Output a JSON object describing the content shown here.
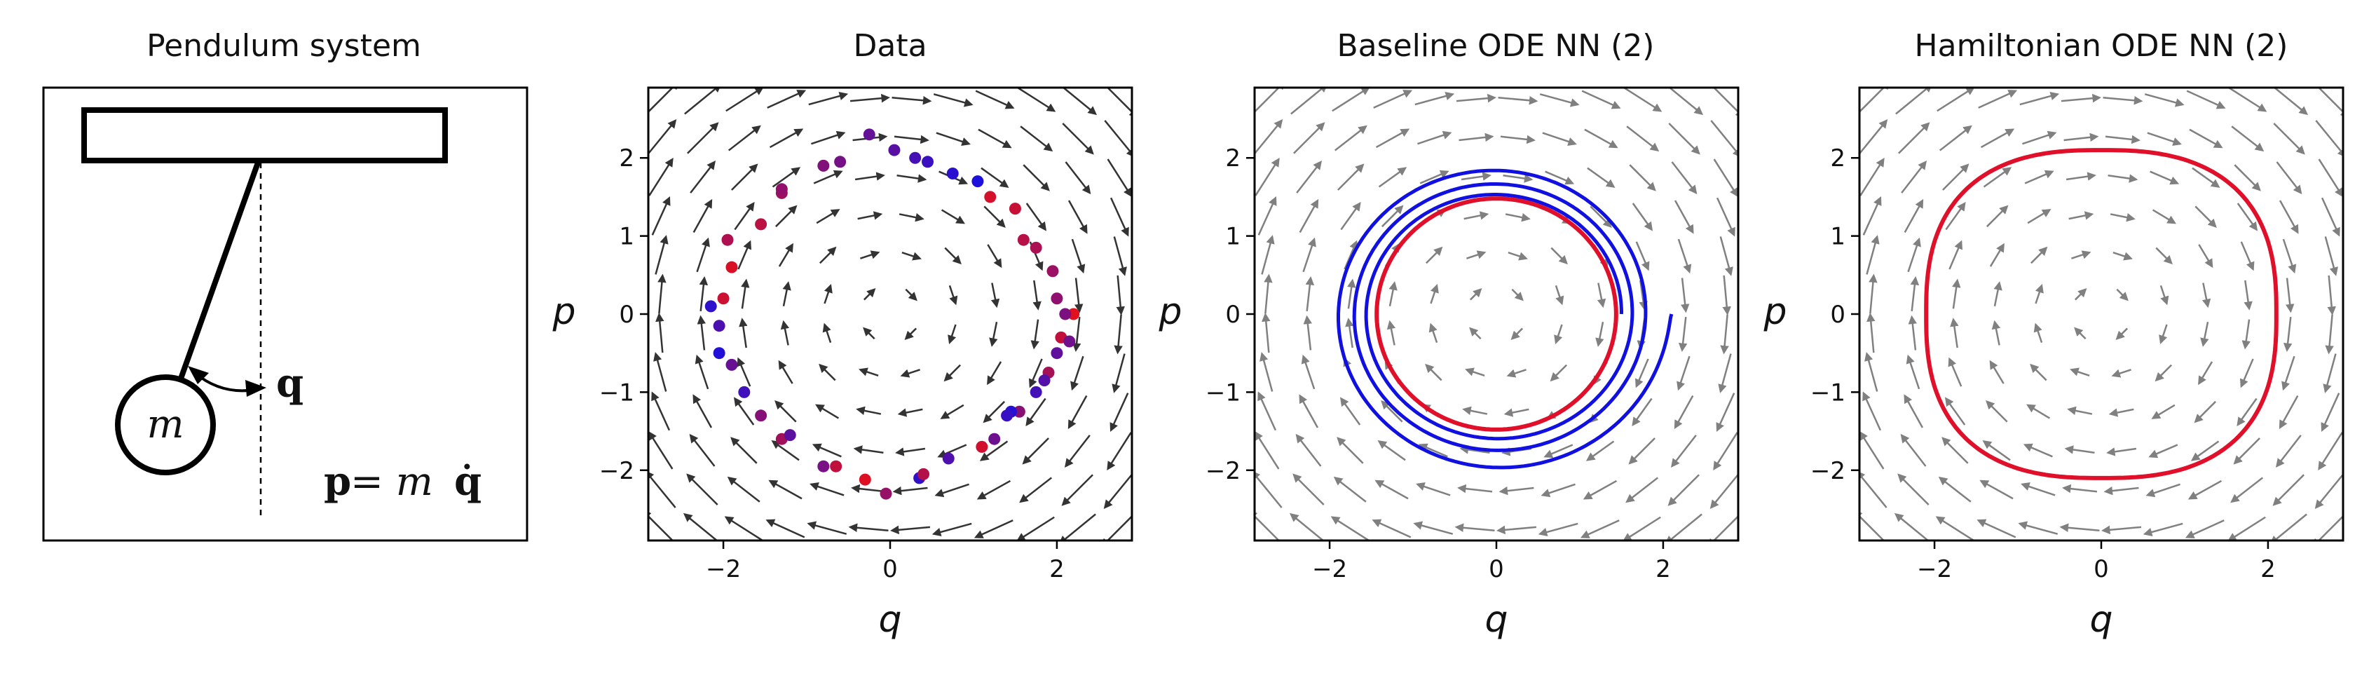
{
  "panels": [
    {
      "title": "Pendulum system"
    },
    {
      "title": "Data"
    },
    {
      "title": "Baseline ODE NN (2)"
    },
    {
      "title": "Hamiltonian ODE NN (2)"
    }
  ],
  "diagram": {
    "mass_label": "m",
    "angle_label": "q",
    "momentum_eq_p": "p",
    "momentum_eq_rhs": "= m",
    "momentum_eq_qdot": "q̇"
  },
  "colors": {
    "field_dark": "#333333",
    "field_light": "#808080",
    "baseline": "#1010e0",
    "hamiltonian": "#e0102a",
    "data_start": "#e0101e",
    "data_end": "#1a10e0"
  },
  "chart_data": [
    {
      "type": "scatter",
      "title": "Data",
      "xlabel": "q",
      "ylabel": "p",
      "xlim": [
        -2.9,
        2.9
      ],
      "ylim": [
        -2.9,
        2.9
      ],
      "xticks": [
        -2,
        0,
        2
      ],
      "yticks": [
        -2,
        -1,
        0,
        1,
        2
      ],
      "points": [
        [
          2.2,
          0.0
        ],
        [
          2.05,
          -0.3
        ],
        [
          1.9,
          -0.75
        ],
        [
          1.55,
          -1.25
        ],
        [
          1.25,
          -1.6
        ],
        [
          0.7,
          -1.85
        ],
        [
          0.35,
          -2.1
        ],
        [
          -0.3,
          -2.12
        ],
        [
          -0.65,
          -1.95
        ],
        [
          -1.3,
          -1.6
        ],
        [
          -1.55,
          -1.3
        ],
        [
          -1.9,
          -0.65
        ],
        [
          -2.05,
          -0.15
        ],
        [
          -2.15,
          0.1
        ],
        [
          -1.9,
          0.6
        ],
        [
          -1.55,
          1.15
        ],
        [
          -1.3,
          1.55
        ],
        [
          -0.8,
          1.9
        ],
        [
          -0.25,
          2.3
        ],
        [
          0.3,
          2.0
        ],
        [
          0.75,
          1.8
        ],
        [
          1.2,
          1.5
        ],
        [
          1.6,
          0.95
        ],
        [
          1.95,
          0.55
        ],
        [
          2.1,
          0.0
        ],
        [
          2.0,
          -0.5
        ],
        [
          1.75,
          -1.0
        ],
        [
          1.45,
          -1.25
        ],
        [
          1.1,
          -1.7
        ],
        [
          0.4,
          -2.05
        ],
        [
          -0.05,
          -2.3
        ],
        [
          -0.8,
          -1.95
        ],
        [
          -1.2,
          -1.55
        ],
        [
          -1.75,
          -1.0
        ],
        [
          -2.05,
          -0.5
        ],
        [
          -2.0,
          0.2
        ],
        [
          -1.95,
          0.95
        ],
        [
          -1.3,
          1.6
        ],
        [
          -0.6,
          1.95
        ],
        [
          0.05,
          2.1
        ],
        [
          0.45,
          1.95
        ],
        [
          1.05,
          1.7
        ],
        [
          1.5,
          1.35
        ],
        [
          1.75,
          0.85
        ],
        [
          2.0,
          0.2
        ],
        [
          2.15,
          -0.35
        ],
        [
          1.85,
          -0.85
        ],
        [
          1.4,
          -1.3
        ]
      ]
    },
    {
      "type": "line",
      "title": "Baseline ODE NN (2)",
      "xlabel": "q",
      "ylabel": "p",
      "xlim": [
        -2.9,
        2.9
      ],
      "ylim": [
        -2.9,
        2.9
      ],
      "xticks": [
        -2,
        0,
        2
      ],
      "yticks": [
        -2,
        -1,
        0,
        1,
        2
      ],
      "spiral_start": [
        2.1,
        0.0
      ],
      "spiral_outer_radius": 2.1,
      "spiral_inner_radius": 1.5,
      "spiral_turns": 3,
      "final_orbit_radius": 1.48
    },
    {
      "type": "line",
      "title": "Hamiltonian ODE NN (2)",
      "xlabel": "q",
      "ylabel": "p",
      "xlim": [
        -2.9,
        2.9
      ],
      "ylim": [
        -2.9,
        2.9
      ],
      "xticks": [
        -2,
        0,
        2
      ],
      "yticks": [
        -2,
        -1,
        0,
        1,
        2
      ],
      "orbit_q_max": 2.1,
      "orbit_p_max": 2.1
    }
  ]
}
